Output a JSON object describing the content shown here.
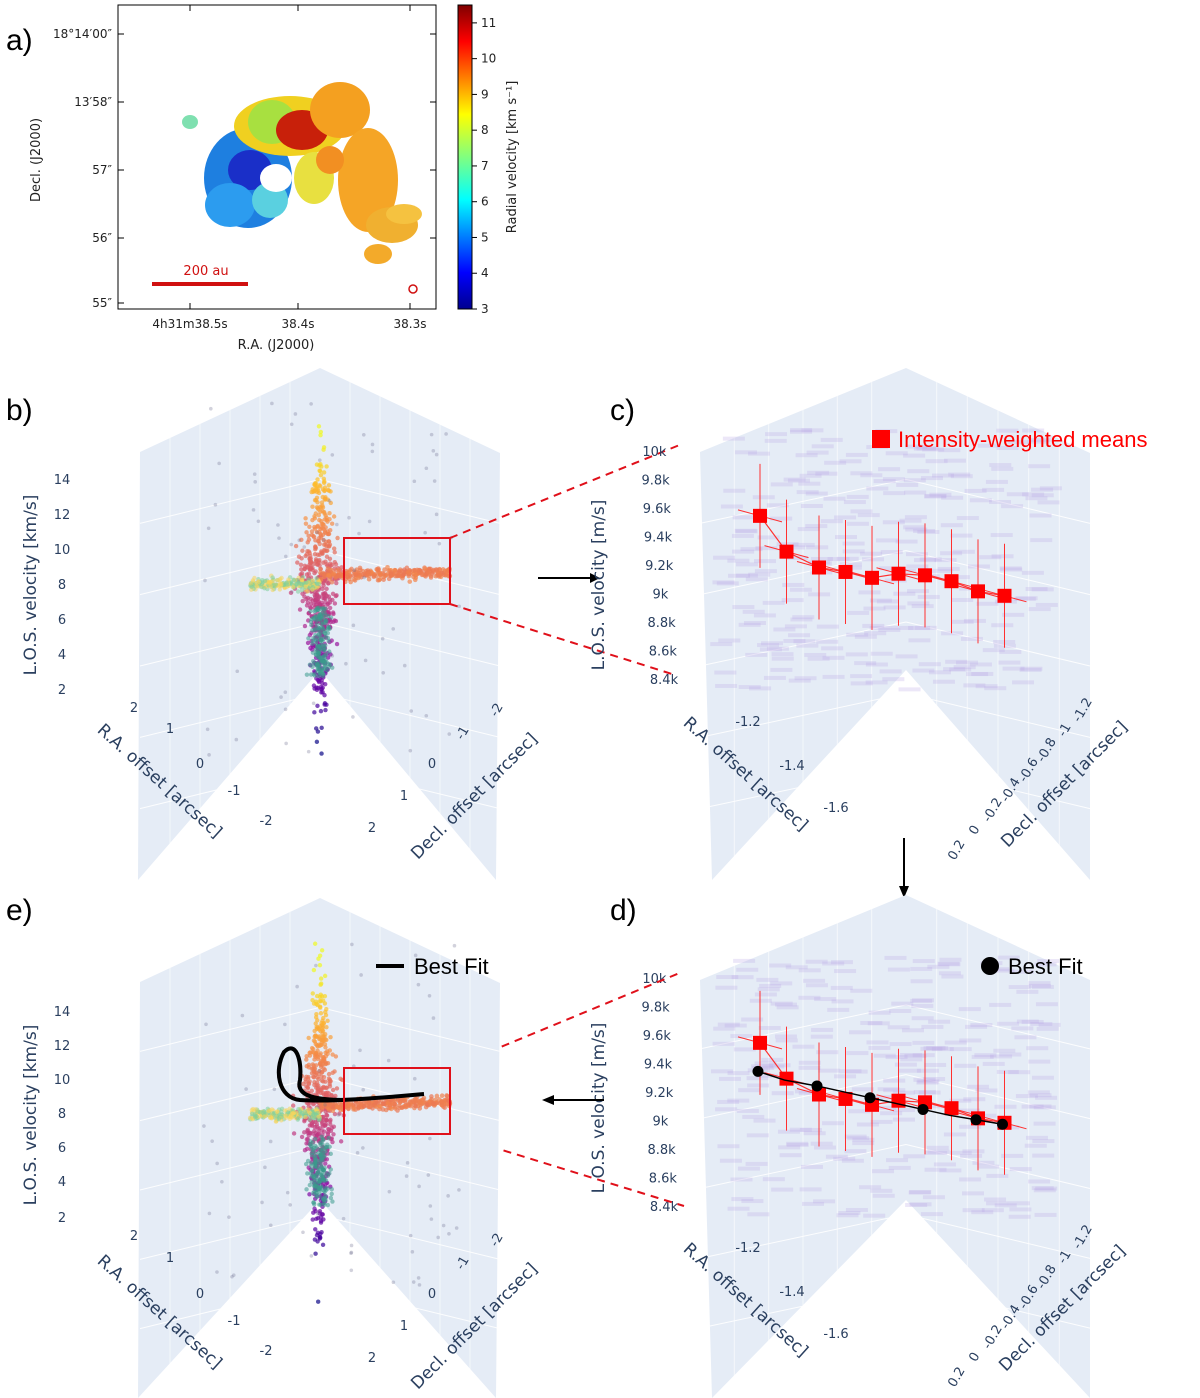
{
  "panel_labels": {
    "a": "a)",
    "b": "b)",
    "c": "c)",
    "d": "d)",
    "e": "e)"
  },
  "chart_data": [
    {
      "id": "a",
      "type": "heatmap",
      "description_free": true,
      "xlabel": "R.A. (J2000)",
      "ylabel": "Decl. (J2000)",
      "xticks": [
        "4h31m38.5s",
        "38.4s",
        "38.3s"
      ],
      "yticks": [
        "18°14′00″",
        "13′58″",
        "57″",
        "56″",
        "55″"
      ],
      "colorbar": {
        "label": "Radial velocity [km s⁻¹]",
        "min": 3,
        "max": 11.5,
        "ticks": [
          3,
          4,
          5,
          6,
          7,
          8,
          9,
          10,
          11
        ]
      },
      "scalebar": "200 au"
    },
    {
      "id": "b",
      "type": "scatter",
      "zlabel": "L.O.S. velocity [km/s]",
      "zticks": [
        2,
        4,
        6,
        8,
        10,
        12,
        14
      ],
      "xlabel": "R.A. offset [arcsec]",
      "xticks": [
        2,
        1,
        0,
        -1,
        -2
      ],
      "ylabel": "Decl. offset [arcsec]",
      "yticks": [
        -2,
        -1,
        0,
        1,
        2
      ]
    },
    {
      "id": "c",
      "type": "scatter",
      "legend": "Intensity-weighted means",
      "zlabel": "L.O.S. velocity [m/s]",
      "zticks": [
        "8.4k",
        "8.6k",
        "8.8k",
        "9k",
        "9.2k",
        "9.4k",
        "9.6k",
        "9.8k",
        "10k"
      ],
      "xlabel": "R.A. offset [arcsec]",
      "xticks": [
        -1.2,
        -1.4,
        -1.6
      ],
      "ylabel": "Decl. offset [arcsec]",
      "yticks": [
        -1.2,
        -1,
        -0.8,
        -0.6,
        -0.4,
        -0.2,
        0,
        0.2
      ],
      "means_kms": [
        9.58,
        9.34,
        9.24,
        9.22,
        9.19,
        9.23,
        9.23,
        9.2,
        9.14,
        9.12
      ]
    },
    {
      "id": "d",
      "type": "scatter",
      "legend": "Best Fit",
      "zlabel": "L.O.S. velocity [m/s]",
      "zticks": [
        "8.4k",
        "8.6k",
        "8.8k",
        "9k",
        "9.2k",
        "9.4k",
        "9.6k",
        "9.8k",
        "10k"
      ],
      "xlabel": "R.A. offset [arcsec]",
      "xticks": [
        -1.2,
        -1.4,
        -1.6
      ],
      "ylabel": "Decl. offset [arcsec]",
      "yticks": [
        -1.2,
        -1,
        -0.8,
        -0.6,
        -0.4,
        -0.2,
        0,
        0.2
      ],
      "means_kms": [
        9.58,
        9.34,
        9.24,
        9.22,
        9.19,
        9.23,
        9.23,
        9.2,
        9.14,
        9.12
      ],
      "fit_kms": [
        9.38,
        9.33,
        9.3,
        9.27,
        9.24,
        9.21,
        9.18,
        9.15,
        9.13,
        9.11
      ]
    },
    {
      "id": "e",
      "type": "scatter",
      "legend": "Best Fit",
      "zlabel": "L.O.S. velocity [km/s]",
      "zticks": [
        2,
        4,
        6,
        8,
        10,
        12,
        14
      ],
      "xlabel": "R.A. offset [arcsec]",
      "xticks": [
        2,
        1,
        0,
        -1,
        -2
      ],
      "ylabel": "Decl. offset [arcsec]",
      "yticks": [
        -2,
        -1,
        0,
        1,
        2
      ]
    }
  ]
}
